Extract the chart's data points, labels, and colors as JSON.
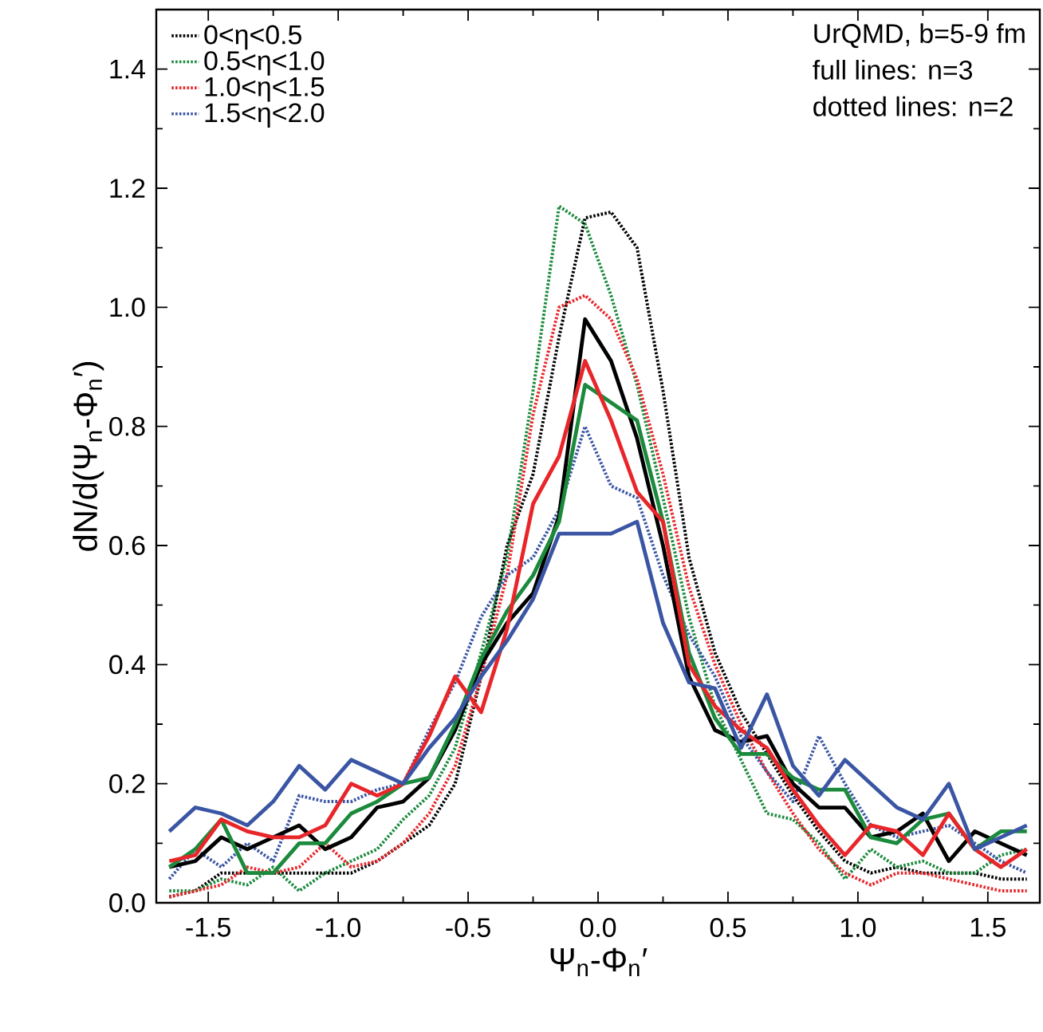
{
  "chart_data": {
    "type": "line",
    "xlabel": "Ψ$_{n}$-Φ$_{n}$′",
    "ylabel": "dN/d(Ψ$_{n}$-Φ$_{n}$′)",
    "annotations": [
      "UrQMD, b=5-9 fm",
      "full lines: n=3",
      "dotted lines: n=2"
    ],
    "x": [
      -1.65,
      -1.55,
      -1.45,
      -1.35,
      -1.25,
      -1.15,
      -1.05,
      -0.95,
      -0.85,
      -0.75,
      -0.65,
      -0.55,
      -0.45,
      -0.35,
      -0.25,
      -0.15,
      -0.05,
      0.05,
      0.15,
      0.25,
      0.35,
      0.45,
      0.55,
      0.65,
      0.75,
      0.85,
      0.95,
      1.05,
      1.15,
      1.25,
      1.35,
      1.45,
      1.55,
      1.65
    ],
    "xlim": [
      -1.7,
      1.7
    ],
    "ylim": [
      0,
      1.5
    ],
    "xticks": [
      {
        "value": -1.5,
        "label": "-1.5"
      },
      {
        "value": -1.0,
        "label": "-1.0"
      },
      {
        "value": -0.5,
        "label": "-0.5"
      },
      {
        "value": 0,
        "label": "0.0"
      },
      {
        "value": 0.5,
        "label": "0.5"
      },
      {
        "value": 1.0,
        "label": "1.0"
      },
      {
        "value": 1.5,
        "label": "1.5"
      }
    ],
    "yticks": [
      {
        "value": 0,
        "label": "0.0"
      },
      {
        "value": 0.2,
        "label": "0.2"
      },
      {
        "value": 0.4,
        "label": "0.4"
      },
      {
        "value": 0.6,
        "label": "0.6"
      },
      {
        "value": 0.8,
        "label": "0.8"
      },
      {
        "value": 1.0,
        "label": "1.0"
      },
      {
        "value": 1.2,
        "label": "1.2"
      },
      {
        "value": 1.4,
        "label": "1.4"
      }
    ],
    "legend": "top left",
    "series": [
      {
        "name": "0<η<0.5",
        "color": "#000000",
        "line_style": "dotted",
        "values": [
          0.01,
          0.02,
          0.05,
          0.05,
          0.05,
          0.05,
          0.05,
          0.05,
          0.07,
          0.1,
          0.13,
          0.2,
          0.38,
          0.6,
          0.72,
          0.95,
          1.15,
          1.16,
          1.1,
          0.86,
          0.58,
          0.42,
          0.32,
          0.25,
          0.18,
          0.12,
          0.07,
          0.05,
          0.06,
          0.05,
          0.05,
          0.05,
          0.04,
          0.04
        ]
      },
      {
        "name": "0.5<η<1.0",
        "color": "#1b8a3c",
        "line_style": "dotted",
        "values": [
          0.02,
          0.02,
          0.04,
          0.03,
          0.06,
          0.02,
          0.05,
          0.07,
          0.09,
          0.14,
          0.18,
          0.26,
          0.42,
          0.58,
          0.86,
          1.17,
          1.14,
          1.02,
          0.87,
          0.68,
          0.48,
          0.33,
          0.24,
          0.15,
          0.14,
          0.1,
          0.04,
          0.09,
          0.06,
          0.07,
          0.05,
          0.05,
          0.08,
          0.09
        ]
      },
      {
        "name": "1.0<η<1.5",
        "color": "#e8262a",
        "line_style": "dotted",
        "values": [
          0.01,
          0.02,
          0.03,
          0.06,
          0.05,
          0.06,
          0.1,
          0.06,
          0.07,
          0.1,
          0.15,
          0.23,
          0.38,
          0.55,
          0.82,
          1.0,
          1.02,
          0.98,
          0.88,
          0.72,
          0.53,
          0.4,
          0.3,
          0.22,
          0.15,
          0.09,
          0.05,
          0.03,
          0.05,
          0.05,
          0.04,
          0.03,
          0.02,
          0.02
        ]
      },
      {
        "name": "1.5<η<2.0",
        "color": "#3a55a4",
        "line_style": "dotted",
        "values": [
          0.04,
          0.09,
          0.06,
          0.1,
          0.07,
          0.18,
          0.17,
          0.17,
          0.19,
          0.2,
          0.29,
          0.37,
          0.48,
          0.55,
          0.58,
          0.66,
          0.8,
          0.7,
          0.68,
          0.55,
          0.45,
          0.38,
          0.28,
          0.22,
          0.17,
          0.28,
          0.2,
          0.13,
          0.11,
          0.12,
          0.13,
          0.1,
          0.07,
          0.05
        ]
      },
      {
        "color": "#000000",
        "line_style": "solid",
        "values": [
          0.06,
          0.07,
          0.11,
          0.09,
          0.11,
          0.13,
          0.09,
          0.11,
          0.16,
          0.17,
          0.21,
          0.29,
          0.4,
          0.47,
          0.52,
          0.65,
          0.98,
          0.91,
          0.78,
          0.6,
          0.38,
          0.29,
          0.27,
          0.28,
          0.2,
          0.16,
          0.16,
          0.11,
          0.12,
          0.15,
          0.07,
          0.12,
          0.1,
          0.08
        ]
      },
      {
        "color": "#1b8a3c",
        "line_style": "solid",
        "values": [
          0.06,
          0.09,
          0.14,
          0.05,
          0.05,
          0.1,
          0.1,
          0.15,
          0.17,
          0.2,
          0.21,
          0.3,
          0.41,
          0.49,
          0.55,
          0.64,
          0.87,
          0.84,
          0.81,
          0.64,
          0.42,
          0.31,
          0.25,
          0.25,
          0.21,
          0.19,
          0.19,
          0.11,
          0.1,
          0.14,
          0.15,
          0.09,
          0.12,
          0.12
        ]
      },
      {
        "color": "#e8262a",
        "line_style": "solid",
        "values": [
          0.07,
          0.08,
          0.14,
          0.12,
          0.11,
          0.11,
          0.13,
          0.2,
          0.18,
          0.2,
          0.28,
          0.38,
          0.32,
          0.46,
          0.67,
          0.75,
          0.91,
          0.81,
          0.69,
          0.64,
          0.4,
          0.33,
          0.29,
          0.26,
          0.19,
          0.13,
          0.08,
          0.13,
          0.12,
          0.08,
          0.15,
          0.09,
          0.06,
          0.09
        ]
      },
      {
        "color": "#3a55a4",
        "line_style": "solid",
        "values": [
          0.12,
          0.16,
          0.15,
          0.13,
          0.17,
          0.23,
          0.19,
          0.24,
          0.22,
          0.2,
          0.26,
          0.31,
          0.38,
          0.44,
          0.51,
          0.62,
          0.62,
          0.62,
          0.64,
          0.47,
          0.37,
          0.36,
          0.26,
          0.35,
          0.23,
          0.18,
          0.24,
          0.2,
          0.16,
          0.14,
          0.2,
          0.09,
          0.11,
          0.13
        ]
      }
    ]
  }
}
